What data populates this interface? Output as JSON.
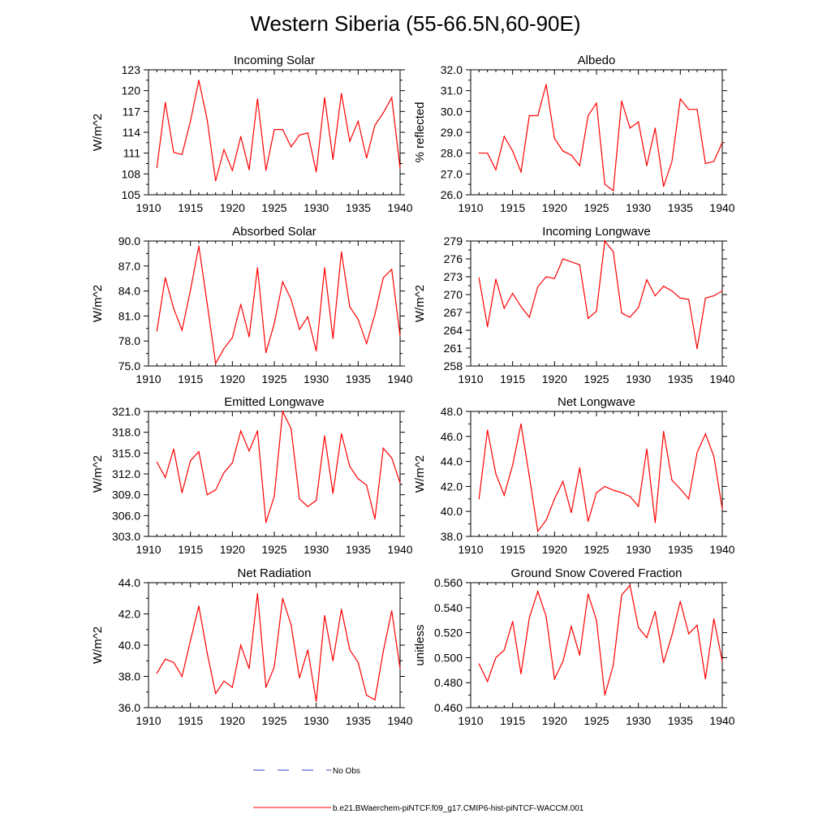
{
  "figure": {
    "title": "Western Siberia (55-66.5N,60-90E)",
    "line_color": "#ff0000",
    "obs_color": "#3b3bd6"
  },
  "legend": {
    "obs_label": "No Obs",
    "model_label": "b.e21.BWaerchem-piNTCF.f09_g17.CMIP6-hist-piNTCF-WACCM.001"
  },
  "chart_data": [
    {
      "type": "line",
      "title": "Incoming Solar",
      "ylabel": "W/m^2",
      "xlim": [
        1910,
        1940
      ],
      "ylim": [
        105,
        123
      ],
      "xticks": [
        "1910",
        "1915",
        "1920",
        "1925",
        "1930",
        "1935",
        "1940"
      ],
      "yticks": [
        "105",
        "108",
        "111",
        "114",
        "117",
        "120",
        "123"
      ],
      "x": [
        1911,
        1912,
        1913,
        1914,
        1915,
        1916,
        1917,
        1918,
        1919,
        1920,
        1921,
        1922,
        1923,
        1924,
        1925,
        1926,
        1927,
        1928,
        1929,
        1930,
        1931,
        1932,
        1933,
        1934,
        1935,
        1936,
        1937,
        1938,
        1939,
        1940
      ],
      "series": [
        {
          "values": [
            108.9,
            118.3,
            111.1,
            110.8,
            115.6,
            121.5,
            115.8,
            107.0,
            111.5,
            108.5,
            113.4,
            108.6,
            118.8,
            108.5,
            114.4,
            114.4,
            111.9,
            113.6,
            113.9,
            108.3,
            119.0,
            110.1,
            119.6,
            112.7,
            115.6,
            110.3,
            115.0,
            116.8,
            119.0,
            108.8
          ]
        }
      ]
    },
    {
      "type": "line",
      "title": "Albedo",
      "ylabel": "% reflected",
      "xlim": [
        1910,
        1940
      ],
      "ylim": [
        26.0,
        32.0
      ],
      "xticks": [
        "1910",
        "1915",
        "1920",
        "1925",
        "1930",
        "1935",
        "1940"
      ],
      "yticks": [
        "26.0",
        "27.0",
        "28.0",
        "29.0",
        "30.0",
        "31.0",
        "32.0"
      ],
      "x": [
        1911,
        1912,
        1913,
        1914,
        1915,
        1916,
        1917,
        1918,
        1919,
        1920,
        1921,
        1922,
        1923,
        1924,
        1925,
        1926,
        1927,
        1928,
        1929,
        1930,
        1931,
        1932,
        1933,
        1934,
        1935,
        1936,
        1937,
        1938,
        1939,
        1940
      ],
      "series": [
        {
          "values": [
            28.0,
            28.0,
            27.2,
            28.8,
            28.1,
            27.1,
            29.8,
            29.8,
            31.3,
            28.7,
            28.1,
            27.9,
            27.4,
            29.8,
            30.4,
            26.5,
            26.2,
            30.5,
            29.2,
            29.5,
            27.4,
            29.2,
            26.4,
            27.6,
            30.6,
            30.1,
            30.1,
            27.5,
            27.6,
            28.5
          ]
        }
      ]
    },
    {
      "type": "line",
      "title": "Absorbed Solar",
      "ylabel": "W/m^2",
      "xlim": [
        1910,
        1940
      ],
      "ylim": [
        75.0,
        90.0
      ],
      "xticks": [
        "1910",
        "1915",
        "1920",
        "1925",
        "1930",
        "1935",
        "1940"
      ],
      "yticks": [
        "75.0",
        "78.0",
        "81.0",
        "84.0",
        "87.0",
        "90.0"
      ],
      "x": [
        1911,
        1912,
        1913,
        1914,
        1915,
        1916,
        1917,
        1918,
        1919,
        1920,
        1921,
        1922,
        1923,
        1924,
        1925,
        1926,
        1927,
        1928,
        1929,
        1930,
        1931,
        1932,
        1933,
        1934,
        1935,
        1936,
        1937,
        1938,
        1939,
        1940
      ],
      "series": [
        {
          "values": [
            79.2,
            85.6,
            81.9,
            79.3,
            84.1,
            89.4,
            82.5,
            75.3,
            77.1,
            78.4,
            82.4,
            78.5,
            86.8,
            76.6,
            80.1,
            85.1,
            83.0,
            79.4,
            80.9,
            76.8,
            86.8,
            78.3,
            88.7,
            82.1,
            80.6,
            77.7,
            81.2,
            85.6,
            86.6,
            78.6
          ]
        }
      ]
    },
    {
      "type": "line",
      "title": "Incoming Longwave",
      "ylabel": "W/m^2",
      "xlim": [
        1910,
        1940
      ],
      "ylim": [
        258,
        279
      ],
      "xticks": [
        "1910",
        "1915",
        "1920",
        "1925",
        "1930",
        "1935",
        "1940"
      ],
      "yticks": [
        "258",
        "261",
        "264",
        "267",
        "270",
        "273",
        "276",
        "279"
      ],
      "x": [
        1911,
        1912,
        1913,
        1914,
        1915,
        1916,
        1917,
        1918,
        1919,
        1920,
        1921,
        1922,
        1923,
        1924,
        1925,
        1926,
        1927,
        1928,
        1929,
        1930,
        1931,
        1932,
        1933,
        1934,
        1935,
        1936,
        1937,
        1938,
        1939,
        1940
      ],
      "series": [
        {
          "values": [
            272.8,
            264.6,
            272.6,
            267.7,
            270.2,
            268.0,
            266.2,
            271.3,
            273.0,
            272.7,
            276.0,
            275.5,
            275.0,
            266.0,
            267.2,
            279.0,
            277.2,
            266.9,
            266.2,
            267.8,
            272.5,
            269.8,
            271.4,
            270.6,
            269.4,
            269.2,
            260.9,
            269.4,
            269.8,
            270.6
          ]
        }
      ]
    },
    {
      "type": "line",
      "title": "Emitted Longwave",
      "ylabel": "W/m^2",
      "xlim": [
        1910,
        1940
      ],
      "ylim": [
        303.0,
        321.0
      ],
      "xticks": [
        "1910",
        "1915",
        "1920",
        "1925",
        "1930",
        "1935",
        "1940"
      ],
      "yticks": [
        "303.0",
        "306.0",
        "309.0",
        "312.0",
        "315.0",
        "318.0",
        "321.0"
      ],
      "x": [
        1911,
        1912,
        1913,
        1914,
        1915,
        1916,
        1917,
        1918,
        1919,
        1920,
        1921,
        1922,
        1923,
        1924,
        1925,
        1926,
        1927,
        1928,
        1929,
        1930,
        1931,
        1932,
        1933,
        1934,
        1935,
        1936,
        1937,
        1938,
        1939,
        1940
      ],
      "series": [
        {
          "values": [
            313.7,
            311.5,
            315.6,
            309.3,
            313.9,
            315.2,
            309.0,
            309.7,
            312.2,
            313.6,
            318.2,
            315.3,
            318.2,
            305.0,
            308.8,
            321.0,
            318.5,
            308.4,
            307.3,
            308.2,
            317.5,
            309.2,
            317.8,
            313.1,
            311.3,
            310.4,
            305.5,
            315.7,
            314.3,
            310.7
          ]
        }
      ]
    },
    {
      "type": "line",
      "title": "Net Longwave",
      "ylabel": "W/m^2",
      "xlim": [
        1910,
        1940
      ],
      "ylim": [
        38.0,
        48.0
      ],
      "xticks": [
        "1910",
        "1915",
        "1920",
        "1925",
        "1930",
        "1935",
        "1940"
      ],
      "yticks": [
        "38.0",
        "40.0",
        "42.0",
        "44.0",
        "46.0",
        "48.0"
      ],
      "x": [
        1911,
        1912,
        1913,
        1914,
        1915,
        1916,
        1917,
        1918,
        1919,
        1920,
        1921,
        1922,
        1923,
        1924,
        1925,
        1926,
        1927,
        1928,
        1929,
        1930,
        1931,
        1932,
        1933,
        1934,
        1935,
        1936,
        1937,
        1938,
        1939,
        1940
      ],
      "series": [
        {
          "values": [
            41.0,
            46.5,
            43.0,
            41.3,
            43.7,
            47.0,
            42.8,
            38.4,
            39.3,
            41.0,
            42.4,
            39.9,
            43.5,
            39.2,
            41.5,
            42.0,
            41.7,
            41.5,
            41.2,
            40.4,
            45.0,
            39.1,
            46.4,
            42.5,
            41.8,
            41.0,
            44.7,
            46.2,
            44.4,
            40.2
          ]
        }
      ]
    },
    {
      "type": "line",
      "title": "Net Radiation",
      "ylabel": "W/m^2",
      "xlim": [
        1910,
        1940
      ],
      "ylim": [
        36.0,
        44.0
      ],
      "xticks": [
        "1910",
        "1915",
        "1920",
        "1925",
        "1930",
        "1935",
        "1940"
      ],
      "yticks": [
        "36.0",
        "38.0",
        "40.0",
        "42.0",
        "44.0"
      ],
      "x": [
        1911,
        1912,
        1913,
        1914,
        1915,
        1916,
        1917,
        1918,
        1919,
        1920,
        1921,
        1922,
        1923,
        1924,
        1925,
        1926,
        1927,
        1928,
        1929,
        1930,
        1931,
        1932,
        1933,
        1934,
        1935,
        1936,
        1937,
        1938,
        1939,
        1940
      ],
      "series": [
        {
          "values": [
            38.2,
            39.1,
            38.9,
            38.0,
            40.3,
            42.5,
            39.5,
            36.9,
            37.7,
            37.3,
            40.0,
            38.5,
            43.3,
            37.3,
            38.6,
            43.0,
            41.3,
            37.9,
            39.7,
            36.4,
            41.9,
            39.0,
            42.3,
            39.7,
            38.9,
            36.8,
            36.5,
            39.6,
            42.2,
            38.5
          ]
        }
      ]
    },
    {
      "type": "line",
      "title": "Ground Snow Covered Fraction",
      "ylabel": "unitless",
      "xlim": [
        1910,
        1940
      ],
      "ylim": [
        0.46,
        0.56
      ],
      "xticks": [
        "1910",
        "1915",
        "1920",
        "1925",
        "1930",
        "1935",
        "1940"
      ],
      "yticks": [
        "0.460",
        "0.480",
        "0.500",
        "0.520",
        "0.540",
        "0.560"
      ],
      "x": [
        1911,
        1912,
        1913,
        1914,
        1915,
        1916,
        1917,
        1918,
        1919,
        1920,
        1921,
        1922,
        1923,
        1924,
        1925,
        1926,
        1927,
        1928,
        1929,
        1930,
        1931,
        1932,
        1933,
        1934,
        1935,
        1936,
        1937,
        1938,
        1939,
        1940
      ],
      "series": [
        {
          "values": [
            0.495,
            0.481,
            0.5,
            0.506,
            0.529,
            0.487,
            0.532,
            0.553,
            0.533,
            0.483,
            0.497,
            0.525,
            0.502,
            0.551,
            0.53,
            0.47,
            0.494,
            0.55,
            0.558,
            0.524,
            0.516,
            0.537,
            0.496,
            0.518,
            0.545,
            0.519,
            0.526,
            0.483,
            0.531,
            0.497
          ]
        }
      ]
    }
  ]
}
